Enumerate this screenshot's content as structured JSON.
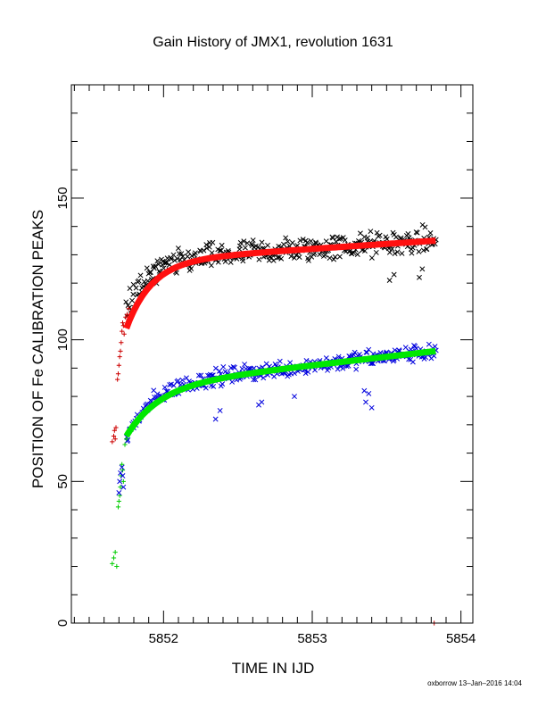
{
  "chart_data": {
    "type": "scatter",
    "title": "Gain History of JMX1, revolution 1631",
    "xlabel": "TIME IN IJD",
    "ylabel": "POSITION OF Fe CALIBRATION PEAKS",
    "xlim": [
      5851.38,
      5854.08
    ],
    "ylim": [
      0,
      190
    ],
    "xticks": [
      5852,
      5853,
      5854
    ],
    "xtick_labels": [
      "5852",
      "5853",
      "5854"
    ],
    "yticks": [
      0,
      50,
      100,
      150
    ],
    "ytick_labels": [
      "0",
      "50",
      "100",
      "150"
    ],
    "grid": false,
    "legend": "none",
    "footer": "oxborrow 13–Jan–2016 14:04",
    "series": [
      {
        "marker": "x",
        "color": "#000000",
        "x_range": [
          5851.75,
          5853.83
        ],
        "count": 330,
        "fit": {
          "y_start": 112,
          "y_end": 135,
          "scale": 0.16,
          "end_slope": 3.5
        },
        "scatter_amplitude": 4.5,
        "outliers": [
          [
            5853.52,
            121
          ],
          [
            5853.55,
            123
          ],
          [
            5853.72,
            122
          ],
          [
            5853.74,
            125
          ]
        ]
      },
      {
        "marker": "x",
        "color": "#0000dd",
        "x_range": [
          5851.75,
          5853.83
        ],
        "count": 330,
        "fit": {
          "y_start": 65,
          "y_end": 96,
          "scale": 0.17,
          "end_slope": 6
        },
        "scatter_amplitude": 3,
        "outliers": [
          [
            5852.35,
            72
          ],
          [
            5852.38,
            75
          ],
          [
            5852.64,
            77
          ],
          [
            5852.66,
            78
          ],
          [
            5852.88,
            80
          ],
          [
            5853.35,
            82
          ],
          [
            5853.36,
            78
          ],
          [
            5853.38,
            81
          ],
          [
            5853.4,
            76
          ]
        ]
      },
      {
        "marker": "+",
        "color": "#cc0000",
        "points": [
          [
            5851.655,
            64
          ],
          [
            5851.665,
            66
          ],
          [
            5851.67,
            68
          ],
          [
            5851.675,
            65
          ],
          [
            5851.68,
            69
          ],
          [
            5851.69,
            86
          ],
          [
            5851.695,
            88
          ],
          [
            5851.7,
            91
          ],
          [
            5851.705,
            94
          ],
          [
            5851.71,
            96
          ],
          [
            5851.715,
            99
          ],
          [
            5851.72,
            103
          ],
          [
            5851.725,
            106
          ],
          [
            5851.73,
            105
          ],
          [
            5851.735,
            102
          ],
          [
            5851.745,
            108
          ],
          [
            5851.755,
            109
          ],
          [
            5851.765,
            111
          ],
          [
            5853.82,
            0
          ]
        ]
      },
      {
        "marker": "+",
        "color": "#00cc00",
        "points": [
          [
            5851.655,
            21
          ],
          [
            5851.665,
            23
          ],
          [
            5851.675,
            25
          ],
          [
            5851.685,
            20
          ],
          [
            5851.695,
            41
          ],
          [
            5851.7,
            43
          ],
          [
            5851.705,
            45
          ],
          [
            5851.71,
            48
          ],
          [
            5851.715,
            52
          ],
          [
            5851.72,
            56
          ],
          [
            5851.725,
            54
          ],
          [
            5851.73,
            50
          ],
          [
            5851.74,
            63
          ],
          [
            5851.75,
            65
          ]
        ]
      },
      {
        "marker": "x",
        "color": "#0000dd",
        "points": [
          [
            5851.7,
            46
          ],
          [
            5851.705,
            50
          ],
          [
            5851.71,
            53
          ],
          [
            5851.72,
            55
          ],
          [
            5851.725,
            52
          ],
          [
            5851.73,
            48
          ]
        ]
      }
    ],
    "fit_lines": [
      {
        "color": "#ff1010",
        "x_range": [
          5851.75,
          5853.83
        ],
        "y_start": 104,
        "y_end": 135,
        "scale": 0.17,
        "end_slope": 3.5
      },
      {
        "color": "#00e800",
        "x_range": [
          5851.75,
          5853.83
        ],
        "y_start": 66,
        "y_end": 96,
        "scale": 0.22,
        "end_slope": 6
      }
    ]
  }
}
